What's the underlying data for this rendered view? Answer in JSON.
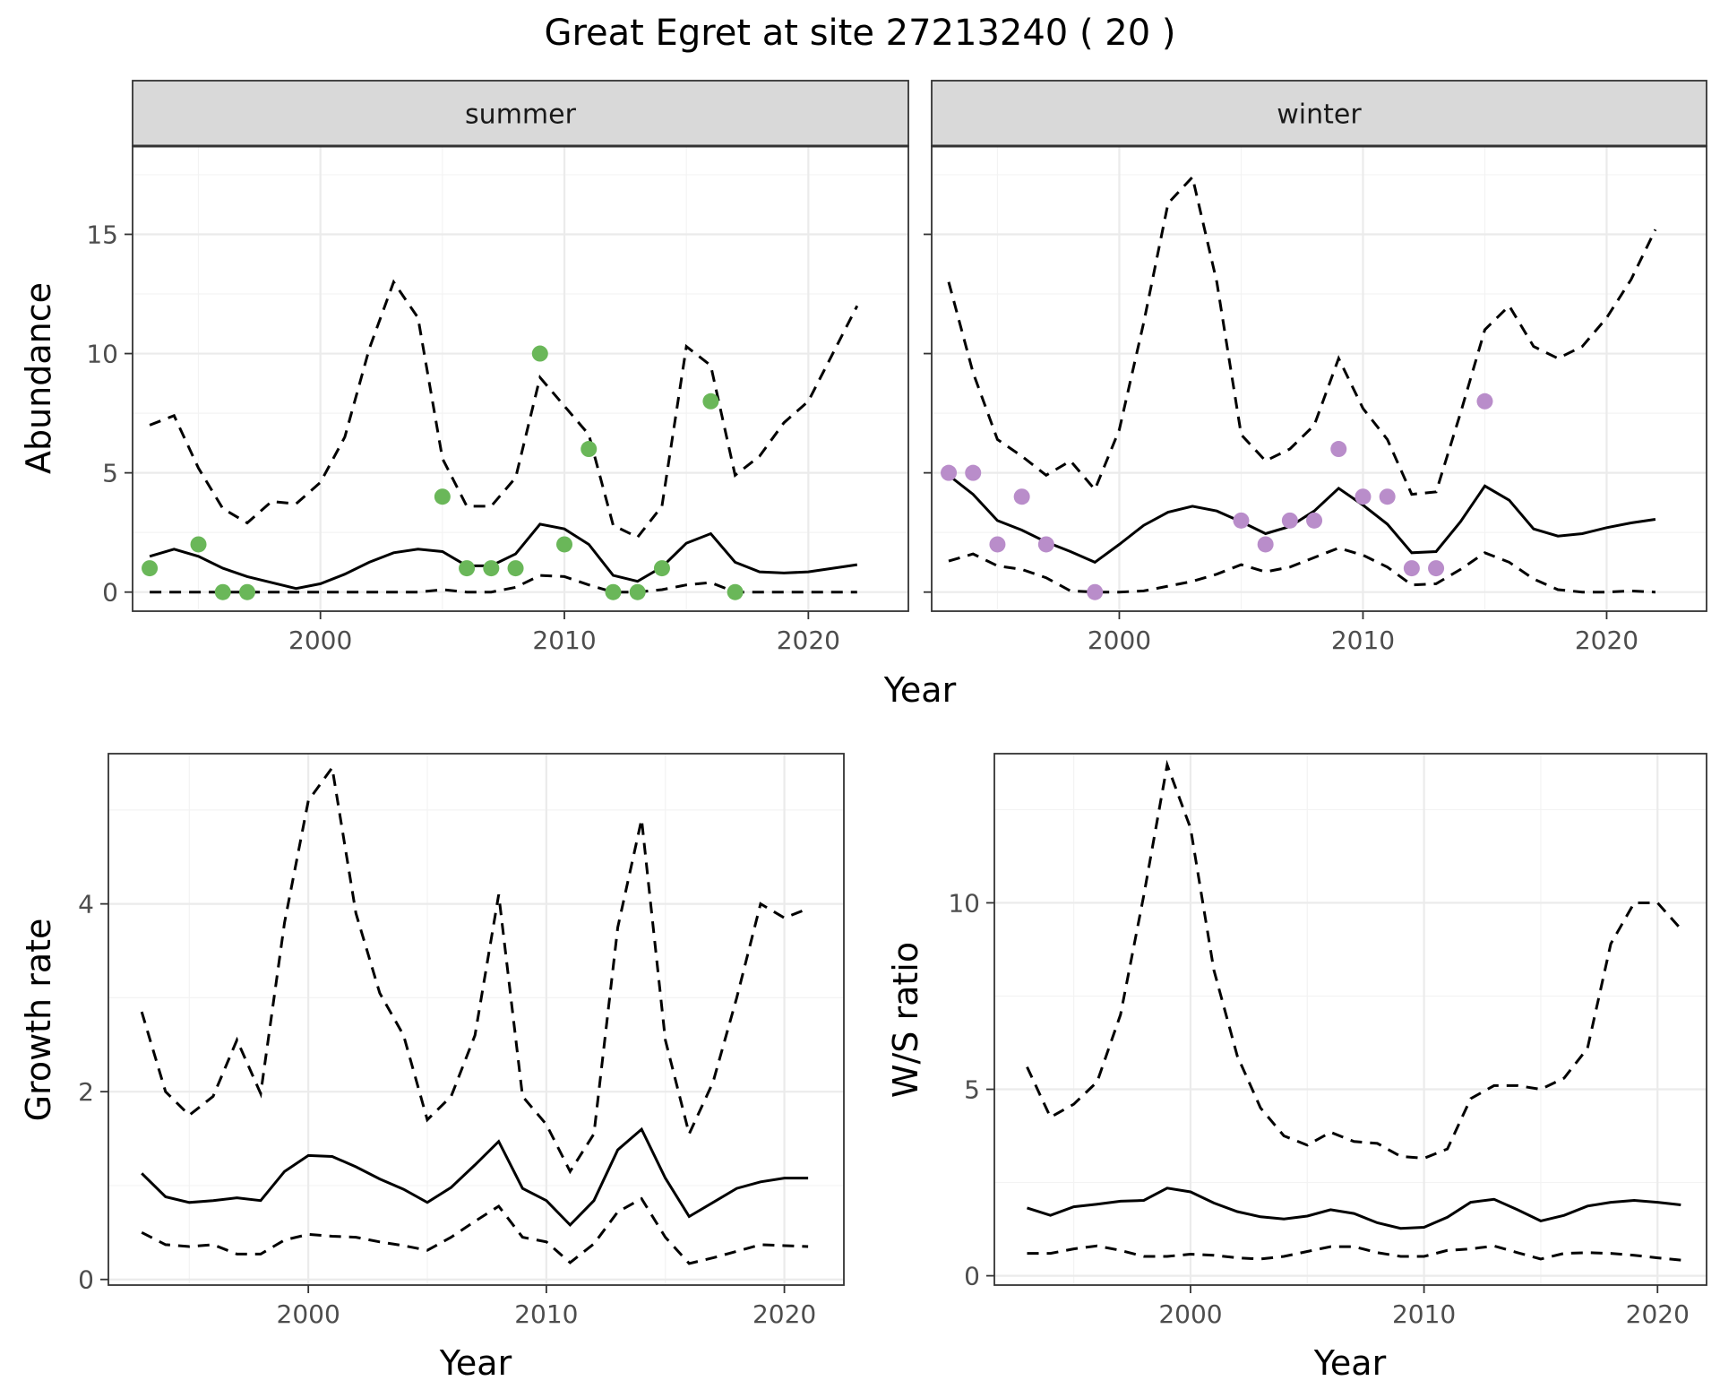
{
  "title": "Great Egret at site 27213240 ( 20 )",
  "colors": {
    "summer": "#6ab759",
    "winter": "#b98dca",
    "line": "#000000"
  },
  "chart_data": [
    {
      "id": "abundance-summer",
      "type": "line",
      "strip": "summer",
      "ylabel": "Abundance",
      "xlim": [
        1992.3,
        2024.1
      ],
      "ylim": [
        -0.8,
        18.7
      ],
      "xticks": [
        2000,
        2010,
        2020
      ],
      "yticks": [
        0,
        5,
        10,
        15
      ],
      "x": [
        1993,
        1994,
        1995,
        1996,
        1997,
        1998,
        1999,
        2000,
        2001,
        2002,
        2003,
        2004,
        2005,
        2006,
        2007,
        2008,
        2009,
        2010,
        2011,
        2012,
        2013,
        2014,
        2015,
        2016,
        2017,
        2018,
        2019,
        2020,
        2021,
        2022
      ],
      "series": [
        {
          "role": "mean",
          "values": [
            1.5,
            1.8,
            1.5,
            1.0,
            0.65,
            0.4,
            0.15,
            0.35,
            0.75,
            1.25,
            1.65,
            1.8,
            1.7,
            1.1,
            1.1,
            1.6,
            2.85,
            2.65,
            2.0,
            0.7,
            0.45,
            1.05,
            2.05,
            2.45,
            1.25,
            0.85,
            0.8,
            0.85,
            1.0,
            1.15
          ]
        },
        {
          "role": "upper",
          "values": [
            7.0,
            7.4,
            5.2,
            3.5,
            2.9,
            3.8,
            3.7,
            4.6,
            6.5,
            10.2,
            13.0,
            11.5,
            5.6,
            3.6,
            3.6,
            4.8,
            9.0,
            7.8,
            6.6,
            2.8,
            2.3,
            3.6,
            10.3,
            9.5,
            4.9,
            5.7,
            7.1,
            8.0,
            10.0,
            12.0
          ]
        },
        {
          "role": "lower",
          "values": [
            0,
            0,
            0,
            0,
            0,
            0,
            0,
            0,
            0,
            0,
            0,
            0,
            0.1,
            0,
            0,
            0.2,
            0.7,
            0.65,
            0.3,
            0,
            0,
            0.1,
            0.3,
            0.4,
            0,
            0,
            0,
            0,
            0,
            0
          ]
        }
      ],
      "points": {
        "x": [
          1993,
          1995,
          1996,
          1997,
          2005,
          2006,
          2007,
          2008,
          2009,
          2010,
          2011,
          2012,
          2013,
          2014,
          2016,
          2017
        ],
        "y": [
          1,
          2,
          0,
          0,
          4,
          1,
          1,
          1,
          10,
          2,
          6,
          0,
          0,
          1,
          8,
          0
        ]
      }
    },
    {
      "id": "abundance-winter",
      "type": "line",
      "strip": "winter",
      "ylabel": "",
      "xlim": [
        1992.3,
        2024.1
      ],
      "ylim": [
        -0.8,
        18.7
      ],
      "xticks": [
        2000,
        2010,
        2020
      ],
      "yticks": [
        0,
        5,
        10,
        15
      ],
      "x": [
        1993,
        1994,
        1995,
        1996,
        1997,
        1998,
        1999,
        2000,
        2001,
        2002,
        2003,
        2004,
        2005,
        2006,
        2007,
        2008,
        2009,
        2010,
        2011,
        2012,
        2013,
        2014,
        2015,
        2016,
        2017,
        2018,
        2019,
        2020,
        2021,
        2022
      ],
      "series": [
        {
          "role": "mean",
          "values": [
            4.9,
            4.1,
            3.0,
            2.6,
            2.1,
            1.7,
            1.25,
            2.0,
            2.8,
            3.35,
            3.6,
            3.4,
            2.95,
            2.45,
            2.75,
            3.4,
            4.35,
            3.65,
            2.85,
            1.65,
            1.7,
            2.95,
            4.45,
            3.85,
            2.65,
            2.35,
            2.45,
            2.7,
            2.9,
            3.05
          ]
        },
        {
          "role": "upper",
          "values": [
            13.0,
            9.2,
            6.4,
            5.7,
            4.9,
            5.5,
            4.3,
            6.8,
            11.3,
            16.3,
            17.4,
            13.0,
            6.6,
            5.5,
            6.0,
            7.0,
            9.8,
            7.7,
            6.4,
            4.1,
            4.2,
            7.5,
            11.0,
            12.0,
            10.3,
            9.8,
            10.3,
            11.5,
            13.1,
            15.2
          ]
        },
        {
          "role": "lower",
          "values": [
            1.3,
            1.6,
            1.1,
            0.95,
            0.6,
            0.05,
            0,
            0,
            0.05,
            0.25,
            0.45,
            0.75,
            1.15,
            0.85,
            1.05,
            1.45,
            1.85,
            1.55,
            1.05,
            0.3,
            0.35,
            0.95,
            1.65,
            1.25,
            0.55,
            0.1,
            0,
            0,
            0.05,
            0
          ]
        }
      ],
      "points": {
        "x": [
          1993,
          1994,
          1995,
          1996,
          1997,
          1999,
          2005,
          2006,
          2007,
          2008,
          2009,
          2010,
          2011,
          2012,
          2013,
          2015
        ],
        "y": [
          5,
          5,
          2,
          4,
          2,
          0,
          3,
          2,
          3,
          3,
          6,
          4,
          4,
          1,
          1,
          8
        ]
      }
    },
    {
      "id": "growth-rate",
      "type": "line",
      "xlabel": "Year",
      "ylabel": "Growth rate",
      "xlim": [
        1991.6,
        2022.5
      ],
      "ylim": [
        -0.06,
        5.6
      ],
      "xticks": [
        2000,
        2010,
        2020
      ],
      "yticks": [
        0,
        2,
        4
      ],
      "x": [
        1993,
        1994,
        1995,
        1996,
        1997,
        1998,
        1999,
        2000,
        2001,
        2002,
        2003,
        2004,
        2005,
        2006,
        2007,
        2008,
        2009,
        2010,
        2011,
        2012,
        2013,
        2014,
        2015,
        2016,
        2017,
        2018,
        2019,
        2020,
        2021
      ],
      "series": [
        {
          "role": "mean",
          "values": [
            1.13,
            0.88,
            0.82,
            0.84,
            0.87,
            0.84,
            1.15,
            1.32,
            1.31,
            1.2,
            1.07,
            0.96,
            0.82,
            0.98,
            1.22,
            1.47,
            0.97,
            0.84,
            0.58,
            0.84,
            1.38,
            1.6,
            1.08,
            0.67,
            0.82,
            0.97,
            1.04,
            1.08,
            1.08
          ]
        },
        {
          "role": "upper",
          "values": [
            2.85,
            2.0,
            1.75,
            1.95,
            2.55,
            1.98,
            3.8,
            5.1,
            5.45,
            3.9,
            3.05,
            2.6,
            1.7,
            1.95,
            2.6,
            4.1,
            1.95,
            1.65,
            1.15,
            1.55,
            3.75,
            4.9,
            2.55,
            1.55,
            2.1,
            3.0,
            4.0,
            3.85,
            3.95
          ]
        },
        {
          "role": "lower",
          "values": [
            0.5,
            0.37,
            0.35,
            0.37,
            0.27,
            0.27,
            0.42,
            0.48,
            0.46,
            0.45,
            0.4,
            0.36,
            0.31,
            0.45,
            0.62,
            0.78,
            0.45,
            0.4,
            0.18,
            0.38,
            0.72,
            0.86,
            0.45,
            0.17,
            0.23,
            0.3,
            0.37,
            0.36,
            0.35
          ]
        }
      ]
    },
    {
      "id": "ws-ratio",
      "type": "line",
      "xlabel": "Year",
      "ylabel": "W/S ratio",
      "xlim": [
        1991.6,
        2022.1
      ],
      "ylim": [
        -0.25,
        14.0
      ],
      "xticks": [
        2000,
        2010,
        2020
      ],
      "yticks": [
        0,
        5,
        10
      ],
      "x": [
        1993,
        1994,
        1995,
        1996,
        1997,
        1998,
        1999,
        2000,
        2001,
        2002,
        2003,
        2004,
        2005,
        2006,
        2007,
        2008,
        2009,
        2010,
        2011,
        2012,
        2013,
        2014,
        2015,
        2016,
        2017,
        2018,
        2019,
        2020,
        2021
      ],
      "series": [
        {
          "role": "mean",
          "values": [
            1.82,
            1.62,
            1.85,
            1.92,
            2.0,
            2.02,
            2.35,
            2.25,
            1.95,
            1.72,
            1.58,
            1.52,
            1.6,
            1.77,
            1.67,
            1.42,
            1.27,
            1.3,
            1.57,
            1.97,
            2.05,
            1.77,
            1.47,
            1.62,
            1.87,
            1.97,
            2.02,
            1.97,
            1.9
          ]
        },
        {
          "role": "upper",
          "values": [
            5.6,
            4.25,
            4.6,
            5.2,
            7.0,
            10.2,
            13.7,
            12.0,
            8.2,
            5.9,
            4.5,
            3.75,
            3.5,
            3.85,
            3.6,
            3.55,
            3.2,
            3.15,
            3.4,
            4.75,
            5.1,
            5.1,
            5.0,
            5.3,
            6.1,
            8.9,
            10.0,
            10.0,
            9.3
          ]
        },
        {
          "role": "lower",
          "values": [
            0.6,
            0.6,
            0.72,
            0.8,
            0.68,
            0.52,
            0.52,
            0.58,
            0.55,
            0.48,
            0.45,
            0.52,
            0.65,
            0.78,
            0.78,
            0.62,
            0.52,
            0.52,
            0.68,
            0.72,
            0.8,
            0.62,
            0.45,
            0.6,
            0.62,
            0.6,
            0.55,
            0.48,
            0.42
          ]
        }
      ]
    }
  ],
  "layout_words": {
    "shared_xlabel_top": "Year"
  }
}
